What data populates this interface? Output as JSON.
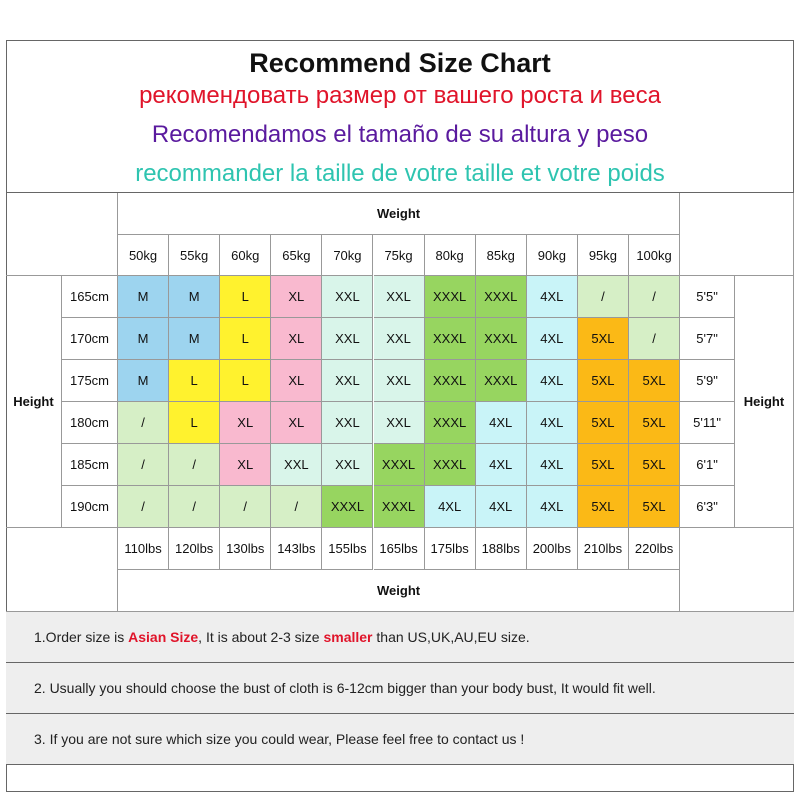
{
  "header": {
    "title": "Recommend Size Chart",
    "lines": [
      {
        "text": "рекомендовать размер от вашего роста и веса",
        "color": "#e0142a"
      },
      {
        "text": "Recomendamos el tamaño de su altura y peso",
        "color": "#5a1a9e"
      },
      {
        "text": "recommander la taille de votre taille et votre poids",
        "color": "#2ec4b0"
      }
    ]
  },
  "table": {
    "weight_label": "Weight",
    "height_label": "Height",
    "kg": [
      "50kg",
      "55kg",
      "60kg",
      "65kg",
      "70kg",
      "75kg",
      "80kg",
      "85kg",
      "90kg",
      "95kg",
      "100kg"
    ],
    "lbs": [
      "110lbs",
      "120lbs",
      "130lbs",
      "143lbs",
      "155lbs",
      "165lbs",
      "175lbs",
      "188lbs",
      "200lbs",
      "210lbs",
      "220lbs"
    ],
    "cm": [
      "165cm",
      "170cm",
      "175cm",
      "180cm",
      "185cm",
      "190cm"
    ],
    "feet": [
      "5'5\"",
      "5'7\"",
      "5'9\"",
      "5'11\"",
      "6'1\"",
      "6'3\""
    ],
    "rows": [
      [
        "M",
        "M",
        "L",
        "XL",
        "XXL",
        "XXL",
        "XXXL",
        "XXXL",
        "4XL",
        "/",
        "/"
      ],
      [
        "M",
        "M",
        "L",
        "XL",
        "XXL",
        "XXL",
        "XXXL",
        "XXXL",
        "4XL",
        "5XL",
        "/"
      ],
      [
        "M",
        "L",
        "L",
        "XL",
        "XXL",
        "XXL",
        "XXXL",
        "XXXL",
        "4XL",
        "5XL",
        "5XL"
      ],
      [
        "/",
        "L",
        "XL",
        "XL",
        "XXL",
        "XXL",
        "XXXL",
        "4XL",
        "4XL",
        "5XL",
        "5XL"
      ],
      [
        "/",
        "/",
        "XL",
        "XXL",
        "XXL",
        "XXXL",
        "XXXL",
        "4XL",
        "4XL",
        "5XL",
        "5XL"
      ],
      [
        "/",
        "/",
        "/",
        "/",
        "XXXL",
        "XXXL",
        "4XL",
        "4XL",
        "4XL",
        "5XL",
        "5XL"
      ]
    ],
    "size_colors": {
      "M": "#9dd4ef",
      "L": "#fff22e",
      "XL": "#f9b9cf",
      "XXL": "#d9f5ea",
      "XXXL": "#97d560",
      "4XL": "#c9f4f8",
      "5XL": "#fbb916",
      "/": "#d6efc6"
    }
  },
  "notes": [
    [
      {
        "text": "1.Order size is ",
        "emphasis": false
      },
      {
        "text": "Asian Size",
        "emphasis": true
      },
      {
        "text": ", It is about 2-3 size ",
        "emphasis": false
      },
      {
        "text": "smaller",
        "emphasis": true
      },
      {
        "text": " than US,UK,AU,EU size.",
        "emphasis": false
      }
    ],
    [
      {
        "text": "2. Usually you should choose the bust of cloth is 6-12cm bigger than your body bust, It would fit well.",
        "emphasis": false
      }
    ],
    [
      {
        "text": "3. If you are not sure which size you could wear, Please feel free to contact us !",
        "emphasis": false
      }
    ]
  ]
}
